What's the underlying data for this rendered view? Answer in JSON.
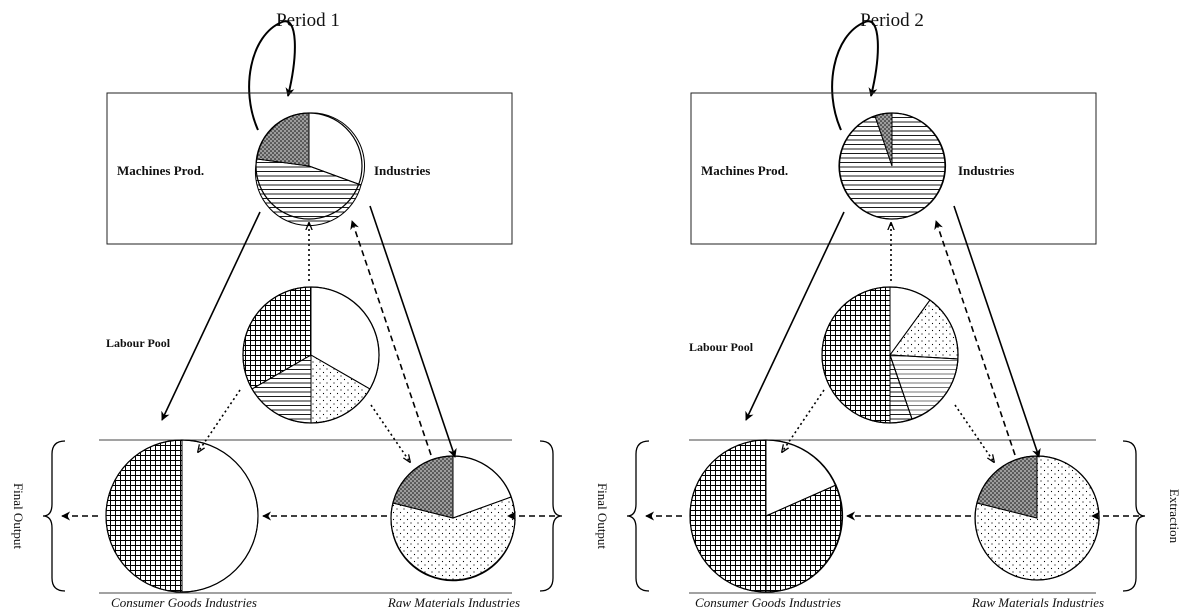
{
  "panels": [
    {
      "title": "Period 1",
      "machines_left": "Machines Prod.",
      "machines_right": "Industries",
      "labour": "Labour Pool",
      "consumer": "Consumer Goods Industries",
      "raw": "Raw Materials Industries",
      "final_output": "Final Output",
      "extraction": ""
    },
    {
      "title": "Period 2",
      "machines_left": "Machines Prod.",
      "machines_right": "Industries",
      "labour": "Labour Pool",
      "consumer": "Consumer Goods Industries",
      "raw": "Raw Materials Industries",
      "final_output": "Final Output",
      "extraction": "Extraction"
    }
  ],
  "pattern_legend": {
    "dense_dots": "dark stippled",
    "horizontal": "horizontal lines",
    "white": "blank",
    "grid": "cross-hatched grid",
    "dots": "light dots"
  }
}
